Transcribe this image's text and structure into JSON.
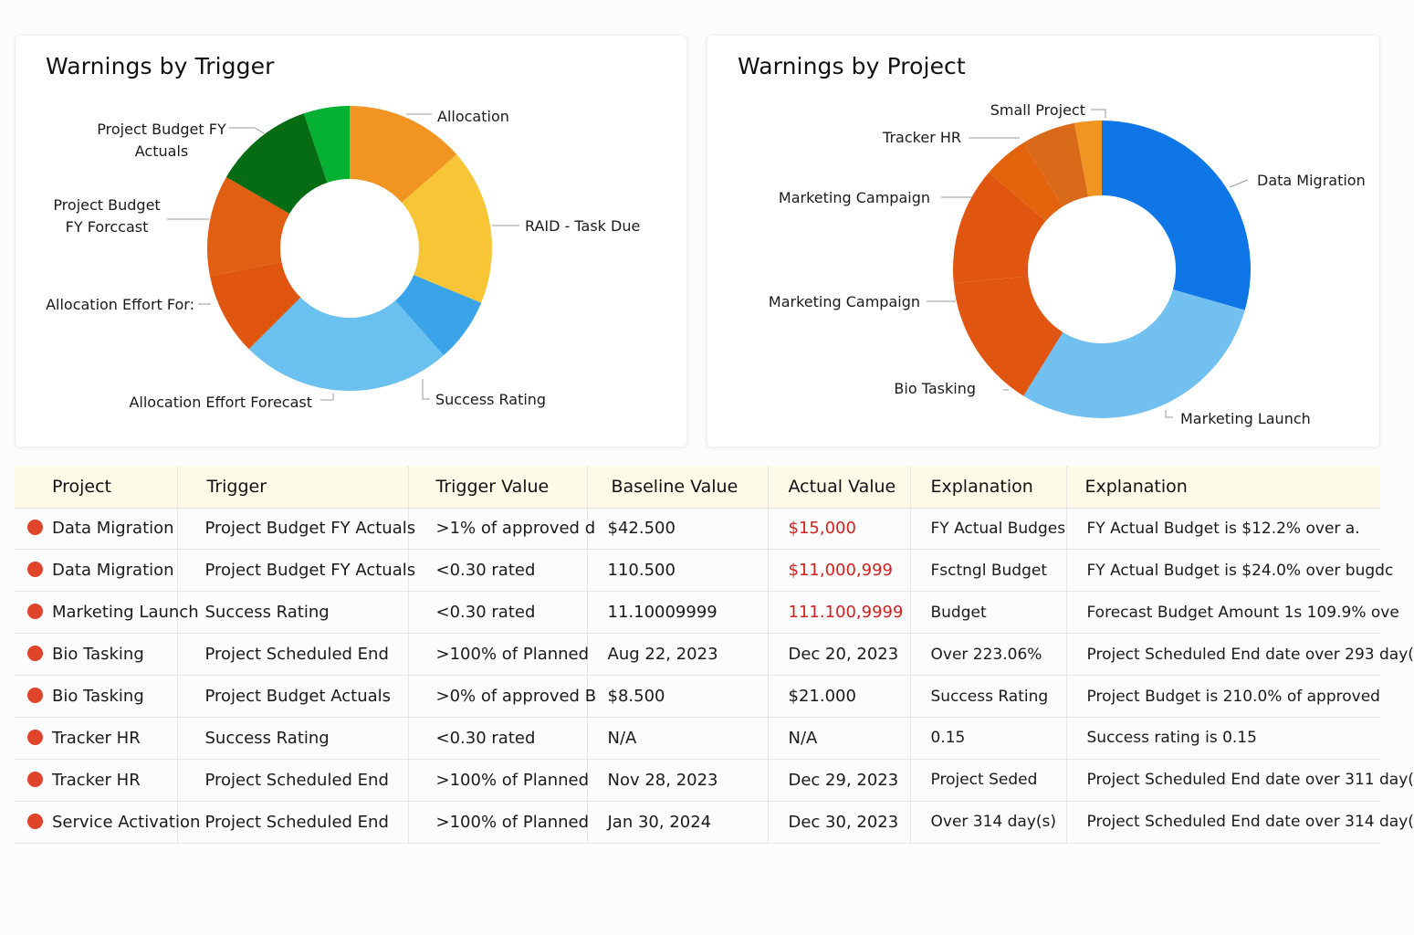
{
  "charts": {
    "trigger": {
      "title": "Warnings by Trigger"
    },
    "project": {
      "title": "Warnings by Project"
    }
  },
  "chart_data": [
    {
      "type": "pie",
      "title": "Warnings by Trigger",
      "slices": [
        {
          "label": "Allocation",
          "value": 13,
          "color": "#f29421"
        },
        {
          "label": "RAID - Task Due",
          "value": 17,
          "color": "#f7c536"
        },
        {
          "label": "Success Rating",
          "value": 7,
          "color": "#3ba3e8"
        },
        {
          "label": "Allocation Effort Forecast",
          "value": 23,
          "color": "#6ac1ef"
        },
        {
          "label": "Allocation Effort For:",
          "value": 9,
          "color": "#e0550f"
        },
        {
          "label": "Project Budget FY Forccast",
          "value": 11,
          "color": "#e05f12"
        },
        {
          "label": "Project Budget FY Actuals",
          "value": 11,
          "color": "#066c14"
        },
        {
          "label": "",
          "value": 5,
          "color": "#06b033"
        }
      ]
    },
    {
      "type": "pie",
      "title": "Warnings by Project",
      "slices": [
        {
          "label": "Data Migration",
          "value": 30,
          "color": "#0e76e6"
        },
        {
          "label": "Marketing Launch",
          "value": 30,
          "color": "#72c0ef"
        },
        {
          "label": "Bio Tasking",
          "value": 15,
          "color": "#e0550f"
        },
        {
          "label": "Marketing Campaign",
          "value": 13,
          "color": "#e0550f"
        },
        {
          "label": "Marketing Campaign",
          "value": 5,
          "color": "#e4640e"
        },
        {
          "label": "Tracker HR",
          "value": 6,
          "color": "#d96a1a"
        },
        {
          "label": "Small Project",
          "value": 3,
          "color": "#f29421"
        }
      ],
      "extra_labels": [
        "Marketing Campaign",
        "Bio Tasking"
      ]
    }
  ],
  "table": {
    "headers": [
      "Project",
      "Trigger",
      "Trigger Value",
      "Baseline Value",
      "Actual Value",
      "Explanation",
      "Explanation"
    ],
    "rows": [
      {
        "project": "Data Migration",
        "trigger": "Project Budget FY Actuals",
        "trigger_value": ">1% of approved d",
        "baseline": "$42.500",
        "actual": "$15,000",
        "actual_red": true,
        "expl1": "FY Actual Budges",
        "expl2": "FY Actual Budget is $12.2% over a."
      },
      {
        "project": "Data Migration",
        "trigger": "Project Budget FY Actuals",
        "trigger_value": "<0.30 rated",
        "baseline": "110.500",
        "actual": "$11,000,999",
        "actual_red": true,
        "expl1": "Fsctngl Budget",
        "expl2": "FY Actual Budget is $24.0% over bugdc"
      },
      {
        "project": "Marketing Launch",
        "trigger": "Success Rating",
        "trigger_value": "<0.30 rated",
        "baseline": "11.10009999",
        "actual": "111.100,9999",
        "actual_red": true,
        "expl1": "Budget",
        "expl2": "Forecast Budget Amount 1s 109.9% ove"
      },
      {
        "project": "Bio Tasking",
        "trigger": "Project Scheduled End",
        "trigger_value": ">100% of Planned",
        "baseline": "Aug 22, 2023",
        "actual": "Dec 20, 2023",
        "actual_red": false,
        "expl1": "Over 223.06%",
        "expl2": "Project Scheduled End date over 293 day("
      },
      {
        "project": "Bio Tasking",
        "trigger": "Project Budget Actuals",
        "trigger_value": ">0% of approved B",
        "baseline": "$8.500",
        "actual": "$21.000",
        "actual_red": false,
        "expl1": "Success Rating",
        "expl2": "Project Budget is 210.0% of approved"
      },
      {
        "project": "Tracker HR",
        "trigger": "Success Rating",
        "trigger_value": "<0.30 rated",
        "baseline": "N/A",
        "actual": "N/A",
        "actual_red": false,
        "expl1": "0.15",
        "expl2": "Success rating is 0.15"
      },
      {
        "project": "Tracker HR",
        "trigger": "Project Scheduled End",
        "trigger_value": ">100% of Planned",
        "baseline": "Nov 28, 2023",
        "actual": "Dec 29, 2023",
        "actual_red": false,
        "expl1": "Project Seded",
        "expl2": "Project Scheduled End date over 311 day("
      },
      {
        "project": "Service Activation",
        "trigger": "Project Scheduled End",
        "trigger_value": ">100% of Planned",
        "baseline": "Jan 30, 2024",
        "actual": "Dec 30, 2023",
        "actual_red": false,
        "expl1": "Over 314 day(s)",
        "expl2": "Project Scheduled End date over 314 day("
      }
    ]
  }
}
